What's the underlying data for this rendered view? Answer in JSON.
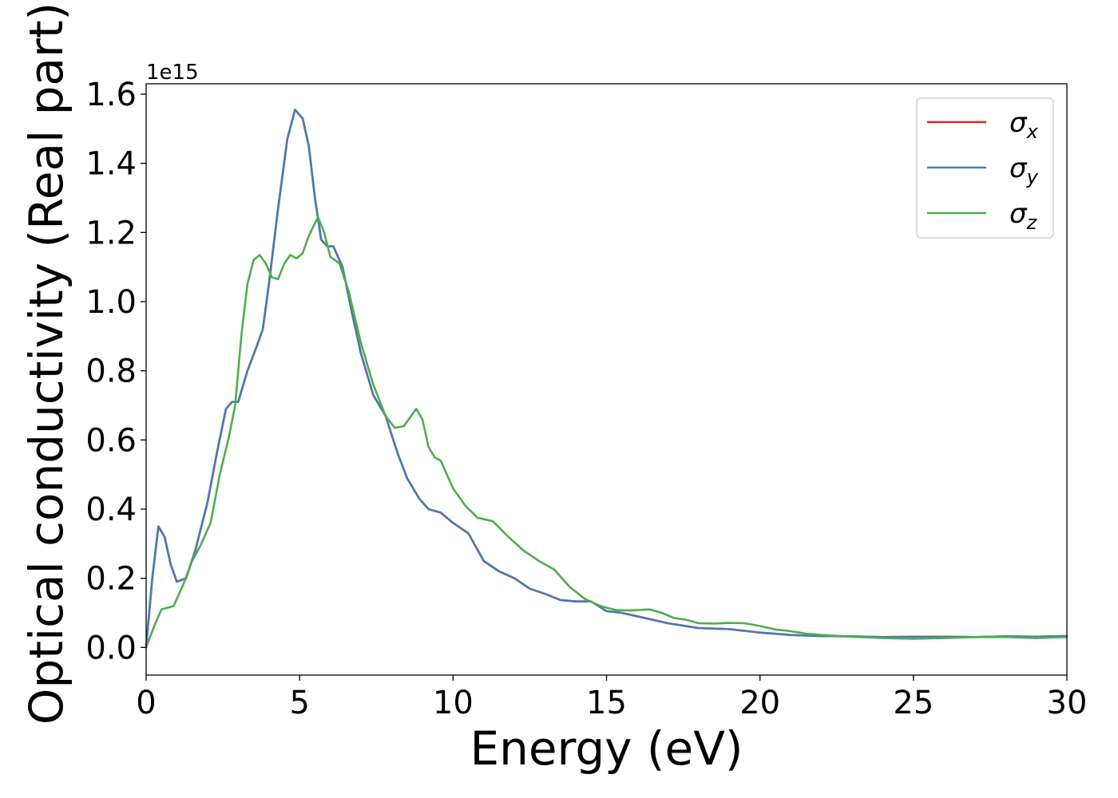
{
  "chart_data": {
    "type": "line",
    "xlabel": "Energy (eV)",
    "ylabel": "Optical conductivity (Real part)",
    "y_offset_label": "1e15",
    "xlim": [
      0,
      30
    ],
    "ylim": [
      -0.08,
      1.63
    ],
    "x_ticks": [
      0,
      5,
      10,
      15,
      20,
      25,
      30
    ],
    "y_ticks": [
      0.0,
      0.2,
      0.4,
      0.6,
      0.8,
      1.0,
      1.2,
      1.4,
      1.6
    ],
    "x_tick_labels": [
      "0",
      "5",
      "10",
      "15",
      "20",
      "25",
      "30"
    ],
    "y_tick_labels": [
      "0.0",
      "0.2",
      "0.4",
      "0.6",
      "0.8",
      "1.0",
      "1.2",
      "1.4",
      "1.6"
    ],
    "grid": false,
    "legend_position": "top-right",
    "series": [
      {
        "name": "σx",
        "legend_symbol": "σ",
        "legend_subscript": "x",
        "color": "#d62728",
        "points": [
          [
            0,
            0
          ],
          [
            0.2,
            0.2
          ],
          [
            0.4,
            0.35
          ],
          [
            0.6,
            0.32
          ],
          [
            0.8,
            0.24
          ],
          [
            1.0,
            0.19
          ],
          [
            1.3,
            0.2
          ],
          [
            1.6,
            0.28
          ],
          [
            2.0,
            0.42
          ],
          [
            2.3,
            0.56
          ],
          [
            2.6,
            0.69
          ],
          [
            2.8,
            0.71
          ],
          [
            3.0,
            0.71
          ],
          [
            3.3,
            0.8
          ],
          [
            3.6,
            0.87
          ],
          [
            3.8,
            0.92
          ],
          [
            4.0,
            1.05
          ],
          [
            4.3,
            1.27
          ],
          [
            4.6,
            1.47
          ],
          [
            4.85,
            1.555
          ],
          [
            5.1,
            1.53
          ],
          [
            5.3,
            1.45
          ],
          [
            5.5,
            1.3
          ],
          [
            5.7,
            1.18
          ],
          [
            5.9,
            1.16
          ],
          [
            6.1,
            1.16
          ],
          [
            6.4,
            1.1
          ],
          [
            6.7,
            0.97
          ],
          [
            7.0,
            0.85
          ],
          [
            7.4,
            0.73
          ],
          [
            7.8,
            0.67
          ],
          [
            8.2,
            0.56
          ],
          [
            8.5,
            0.49
          ],
          [
            8.9,
            0.43
          ],
          [
            9.2,
            0.4
          ],
          [
            9.6,
            0.39
          ],
          [
            10.0,
            0.36
          ],
          [
            10.5,
            0.33
          ],
          [
            11.0,
            0.25
          ],
          [
            11.5,
            0.22
          ],
          [
            12.0,
            0.2
          ],
          [
            12.5,
            0.17
          ],
          [
            13.0,
            0.155
          ],
          [
            13.5,
            0.137
          ],
          [
            14.0,
            0.133
          ],
          [
            14.5,
            0.133
          ],
          [
            15.0,
            0.105
          ],
          [
            15.5,
            0.1
          ],
          [
            16.0,
            0.09
          ],
          [
            17.0,
            0.07
          ],
          [
            18.0,
            0.056
          ],
          [
            19.0,
            0.053
          ],
          [
            20.0,
            0.043
          ],
          [
            21.0,
            0.036
          ],
          [
            22.0,
            0.033
          ],
          [
            23.0,
            0.032
          ],
          [
            24.0,
            0.03
          ],
          [
            25.0,
            0.031
          ],
          [
            26.0,
            0.031
          ],
          [
            27.0,
            0.03
          ],
          [
            28.0,
            0.032
          ],
          [
            29.0,
            0.031
          ],
          [
            30.0,
            0.033
          ]
        ]
      },
      {
        "name": "σy",
        "legend_symbol": "σ",
        "legend_subscript": "y",
        "color": "#4a7ab5",
        "points": [
          [
            0,
            0
          ],
          [
            0.2,
            0.2
          ],
          [
            0.4,
            0.35
          ],
          [
            0.6,
            0.32
          ],
          [
            0.8,
            0.24
          ],
          [
            1.0,
            0.19
          ],
          [
            1.3,
            0.2
          ],
          [
            1.6,
            0.28
          ],
          [
            2.0,
            0.42
          ],
          [
            2.3,
            0.56
          ],
          [
            2.6,
            0.69
          ],
          [
            2.8,
            0.71
          ],
          [
            3.0,
            0.71
          ],
          [
            3.3,
            0.8
          ],
          [
            3.6,
            0.87
          ],
          [
            3.8,
            0.92
          ],
          [
            4.0,
            1.05
          ],
          [
            4.3,
            1.27
          ],
          [
            4.6,
            1.47
          ],
          [
            4.85,
            1.555
          ],
          [
            5.1,
            1.53
          ],
          [
            5.3,
            1.45
          ],
          [
            5.5,
            1.3
          ],
          [
            5.7,
            1.18
          ],
          [
            5.9,
            1.16
          ],
          [
            6.1,
            1.16
          ],
          [
            6.4,
            1.1
          ],
          [
            6.7,
            0.97
          ],
          [
            7.0,
            0.85
          ],
          [
            7.4,
            0.73
          ],
          [
            7.8,
            0.67
          ],
          [
            8.2,
            0.56
          ],
          [
            8.5,
            0.49
          ],
          [
            8.9,
            0.43
          ],
          [
            9.2,
            0.4
          ],
          [
            9.6,
            0.39
          ],
          [
            10.0,
            0.36
          ],
          [
            10.5,
            0.33
          ],
          [
            11.0,
            0.25
          ],
          [
            11.5,
            0.22
          ],
          [
            12.0,
            0.2
          ],
          [
            12.5,
            0.17
          ],
          [
            13.0,
            0.155
          ],
          [
            13.5,
            0.137
          ],
          [
            14.0,
            0.133
          ],
          [
            14.5,
            0.133
          ],
          [
            15.0,
            0.105
          ],
          [
            15.5,
            0.1
          ],
          [
            16.0,
            0.09
          ],
          [
            17.0,
            0.07
          ],
          [
            18.0,
            0.056
          ],
          [
            19.0,
            0.053
          ],
          [
            20.0,
            0.043
          ],
          [
            21.0,
            0.036
          ],
          [
            22.0,
            0.033
          ],
          [
            23.0,
            0.032
          ],
          [
            24.0,
            0.03
          ],
          [
            25.0,
            0.031
          ],
          [
            26.0,
            0.031
          ],
          [
            27.0,
            0.03
          ],
          [
            28.0,
            0.032
          ],
          [
            29.0,
            0.031
          ],
          [
            30.0,
            0.033
          ]
        ]
      },
      {
        "name": "σz",
        "legend_symbol": "σ",
        "legend_subscript": "z",
        "color": "#4daf4a",
        "points": [
          [
            0,
            0
          ],
          [
            0.3,
            0.07
          ],
          [
            0.5,
            0.11
          ],
          [
            0.9,
            0.12
          ],
          [
            1.2,
            0.18
          ],
          [
            1.5,
            0.25
          ],
          [
            1.8,
            0.3
          ],
          [
            2.1,
            0.36
          ],
          [
            2.4,
            0.5
          ],
          [
            2.7,
            0.61
          ],
          [
            2.9,
            0.7
          ],
          [
            3.1,
            0.9
          ],
          [
            3.3,
            1.05
          ],
          [
            3.5,
            1.12
          ],
          [
            3.7,
            1.135
          ],
          [
            3.9,
            1.11
          ],
          [
            4.1,
            1.07
          ],
          [
            4.3,
            1.065
          ],
          [
            4.5,
            1.11
          ],
          [
            4.7,
            1.135
          ],
          [
            4.9,
            1.125
          ],
          [
            5.1,
            1.14
          ],
          [
            5.3,
            1.19
          ],
          [
            5.6,
            1.245
          ],
          [
            5.8,
            1.2
          ],
          [
            6.0,
            1.13
          ],
          [
            6.3,
            1.11
          ],
          [
            6.6,
            1.03
          ],
          [
            7.0,
            0.88
          ],
          [
            7.4,
            0.76
          ],
          [
            7.8,
            0.67
          ],
          [
            8.1,
            0.635
          ],
          [
            8.4,
            0.64
          ],
          [
            8.6,
            0.665
          ],
          [
            8.8,
            0.69
          ],
          [
            9.0,
            0.66
          ],
          [
            9.2,
            0.58
          ],
          [
            9.4,
            0.55
          ],
          [
            9.6,
            0.54
          ],
          [
            10.0,
            0.46
          ],
          [
            10.4,
            0.41
          ],
          [
            10.8,
            0.375
          ],
          [
            11.3,
            0.365
          ],
          [
            11.8,
            0.32
          ],
          [
            12.3,
            0.28
          ],
          [
            12.8,
            0.25
          ],
          [
            13.3,
            0.225
          ],
          [
            13.8,
            0.175
          ],
          [
            14.3,
            0.14
          ],
          [
            14.8,
            0.12
          ],
          [
            15.3,
            0.108
          ],
          [
            15.8,
            0.107
          ],
          [
            16.4,
            0.11
          ],
          [
            16.8,
            0.1
          ],
          [
            17.2,
            0.085
          ],
          [
            17.6,
            0.08
          ],
          [
            18.0,
            0.07
          ],
          [
            18.5,
            0.069
          ],
          [
            19.0,
            0.071
          ],
          [
            19.5,
            0.07
          ],
          [
            20.0,
            0.062
          ],
          [
            20.5,
            0.052
          ],
          [
            21.0,
            0.047
          ],
          [
            21.5,
            0.04
          ],
          [
            22.0,
            0.036
          ],
          [
            23.0,
            0.031
          ],
          [
            24.0,
            0.027
          ],
          [
            25.0,
            0.025
          ],
          [
            26.0,
            0.027
          ],
          [
            27.0,
            0.03
          ],
          [
            28.0,
            0.03
          ],
          [
            29.0,
            0.027
          ],
          [
            30.0,
            0.03
          ]
        ]
      }
    ]
  }
}
